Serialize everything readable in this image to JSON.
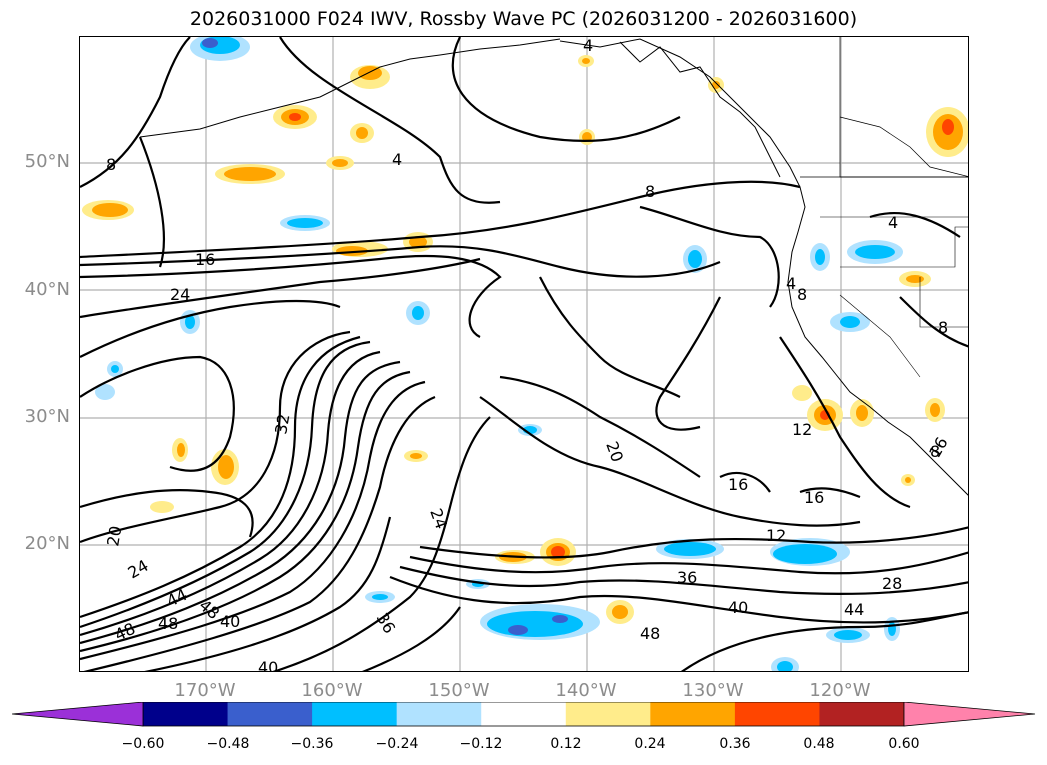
{
  "title": "2026031000 F024 IWV, Rossby Wave PC (2026031200 - 2026031600)",
  "lat_labels": [
    "50°N",
    "40°N",
    "30°N",
    "20°N"
  ],
  "lon_labels": [
    "170°W",
    "160°W",
    "150°W",
    "140°W",
    "130°W",
    "120°W"
  ],
  "contour_labels": [
    "4",
    "8",
    "4",
    "8",
    "16",
    "24",
    "8",
    "4",
    "8",
    "8",
    "32",
    "20",
    "24",
    "20",
    "24",
    "48",
    "44",
    "48",
    "48",
    "40",
    "40",
    "36",
    "36",
    "40",
    "44",
    "48",
    "28",
    "12",
    "16",
    "16",
    "12",
    "16",
    "4"
  ],
  "colorbar": {
    "ticks": [
      "−0.60",
      "−0.48",
      "−0.36",
      "−0.24",
      "−0.12",
      "0.12",
      "0.24",
      "0.36",
      "0.48",
      "0.60"
    ],
    "colors": [
      "#9b30d8",
      "#00008b",
      "#3a5fcd",
      "#00bfff",
      "#b0e2ff",
      "#ffffff",
      "#ffec8b",
      "#ffa500",
      "#ff4500",
      "#b22222",
      "#ff82ab"
    ]
  },
  "map_extent": {
    "lon": [
      -180,
      -110
    ],
    "lat": [
      10,
      60
    ]
  }
}
